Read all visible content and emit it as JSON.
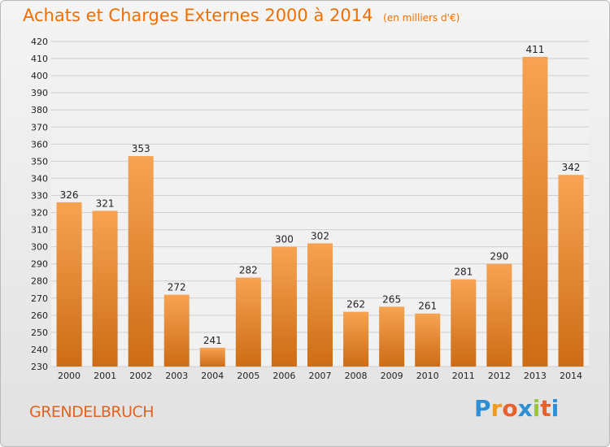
{
  "title": {
    "main": "Achats et Charges Externes 2000 à 2014",
    "unit": "(en milliers d'€)"
  },
  "location": "GRENDELBRUCH",
  "brand": {
    "name": "Proxiti",
    "letters": [
      {
        "char": "P",
        "color": "#2e8fd6"
      },
      {
        "char": "r",
        "color": "#f29a1a"
      },
      {
        "char": "o",
        "color": "#e8602a"
      },
      {
        "char": "x",
        "color": "#2e8fd6"
      },
      {
        "char": "i",
        "color": "#9bc53d"
      },
      {
        "char": "t",
        "color": "#e8602a"
      },
      {
        "char": "i",
        "color": "#2e8fd6"
      }
    ]
  },
  "colors": {
    "title": "#ef6f00",
    "bar_top": "#f7a352",
    "bar_bottom": "#cd6c15",
    "grid": "#cfcfcf",
    "axis_text": "#222222"
  },
  "chart_data": {
    "type": "bar",
    "title": "Achats et Charges Externes 2000 à 2014",
    "xlabel": "",
    "ylabel": "",
    "categories": [
      "2000",
      "2001",
      "2002",
      "2003",
      "2004",
      "2005",
      "2006",
      "2007",
      "2008",
      "2009",
      "2010",
      "2011",
      "2012",
      "2013",
      "2014"
    ],
    "values": [
      326,
      321,
      353,
      272,
      241,
      282,
      300,
      302,
      262,
      265,
      261,
      281,
      290,
      411,
      342
    ],
    "ylim": [
      230,
      420
    ],
    "yticks": [
      230,
      240,
      250,
      260,
      270,
      280,
      290,
      300,
      310,
      320,
      330,
      340,
      350,
      360,
      370,
      380,
      390,
      400,
      410,
      420
    ],
    "grid": true,
    "data_labels": true
  }
}
